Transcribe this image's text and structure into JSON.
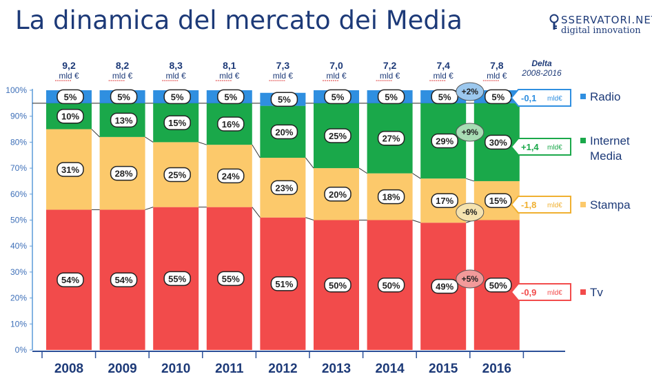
{
  "title": "La dinamica del mercato dei Media",
  "logo": {
    "line1": "SSERVATORI.NET",
    "line2": "digital innovation"
  },
  "chart_data": {
    "type": "bar",
    "stacked": true,
    "normalized": true,
    "categories": [
      "2008",
      "2009",
      "2010",
      "2011",
      "2012",
      "2013",
      "2014",
      "2015",
      "2016"
    ],
    "totals": [
      "9,2",
      "8,2",
      "8,3",
      "8,1",
      "7,3",
      "7,0",
      "7,2",
      "7,4",
      "7,8"
    ],
    "total_unit": "mld €",
    "series": [
      {
        "name": "Tv",
        "color": "#f24b4b",
        "values": [
          54,
          54,
          55,
          55,
          51,
          50,
          50,
          49,
          50
        ],
        "labels": [
          "54%",
          "54%",
          "55%",
          "55%",
          "51%",
          "50%",
          "50%",
          "49%",
          "50%"
        ]
      },
      {
        "name": "Stampa",
        "color": "#fcc96b",
        "values": [
          31,
          28,
          25,
          24,
          23,
          20,
          18,
          17,
          15
        ],
        "labels": [
          "31%",
          "28%",
          "25%",
          "24%",
          "23%",
          "20%",
          "18%",
          "17%",
          "15%"
        ]
      },
      {
        "name": "Internet Media",
        "color": "#1aa84a",
        "values": [
          10,
          13,
          15,
          16,
          20,
          25,
          27,
          29,
          30
        ],
        "labels": [
          "10%",
          "13%",
          "15%",
          "16%",
          "20%",
          "25%",
          "27%",
          "29%",
          "30%"
        ]
      },
      {
        "name": "Radio",
        "color": "#2f8fe0",
        "values": [
          5,
          5,
          5,
          5,
          5,
          5,
          5,
          5,
          5
        ],
        "labels": [
          "5%",
          "5%",
          "5%",
          "5%",
          "5%",
          "5%",
          "5%",
          "5%",
          "5%"
        ]
      }
    ],
    "yticks": [
      "0%",
      "10%",
      "20%",
      "30%",
      "40%",
      "50%",
      "60%",
      "70%",
      "80%",
      "90%",
      "100%"
    ],
    "ylim": [
      0,
      100
    ],
    "delta_header": [
      "Delta",
      "2008-2016"
    ],
    "deltas": [
      {
        "series": "Radio",
        "value": "-0,1",
        "unit": "mld€",
        "color": "#2f8fe0"
      },
      {
        "series": "Internet Media",
        "value": "+1,4",
        "unit": "mld€",
        "color": "#1aa84a"
      },
      {
        "series": "Stampa",
        "value": "-1,8",
        "unit": "mld€",
        "color": "#f0b030"
      },
      {
        "series": "Tv",
        "value": "-0,9",
        "unit": "mld€",
        "color": "#f24b4b"
      }
    ],
    "growth_bubbles": [
      {
        "series": "Radio",
        "label": "+2%",
        "color": "#9cc8ee"
      },
      {
        "series": "Internet Media",
        "label": "+9%",
        "color": "#a8dcb4"
      },
      {
        "series": "Stampa",
        "label": "-6%",
        "color": "#f5e3b0"
      },
      {
        "series": "Tv",
        "label": "+5%",
        "color": "#f29a9a"
      }
    ],
    "legend": [
      {
        "label": "Radio",
        "color": "#2f8fe0"
      },
      {
        "label": "Internet Media",
        "color": "#1aa84a"
      },
      {
        "label": "Stampa",
        "color": "#fcc96b"
      },
      {
        "label": "Tv",
        "color": "#f24b4b"
      }
    ]
  }
}
